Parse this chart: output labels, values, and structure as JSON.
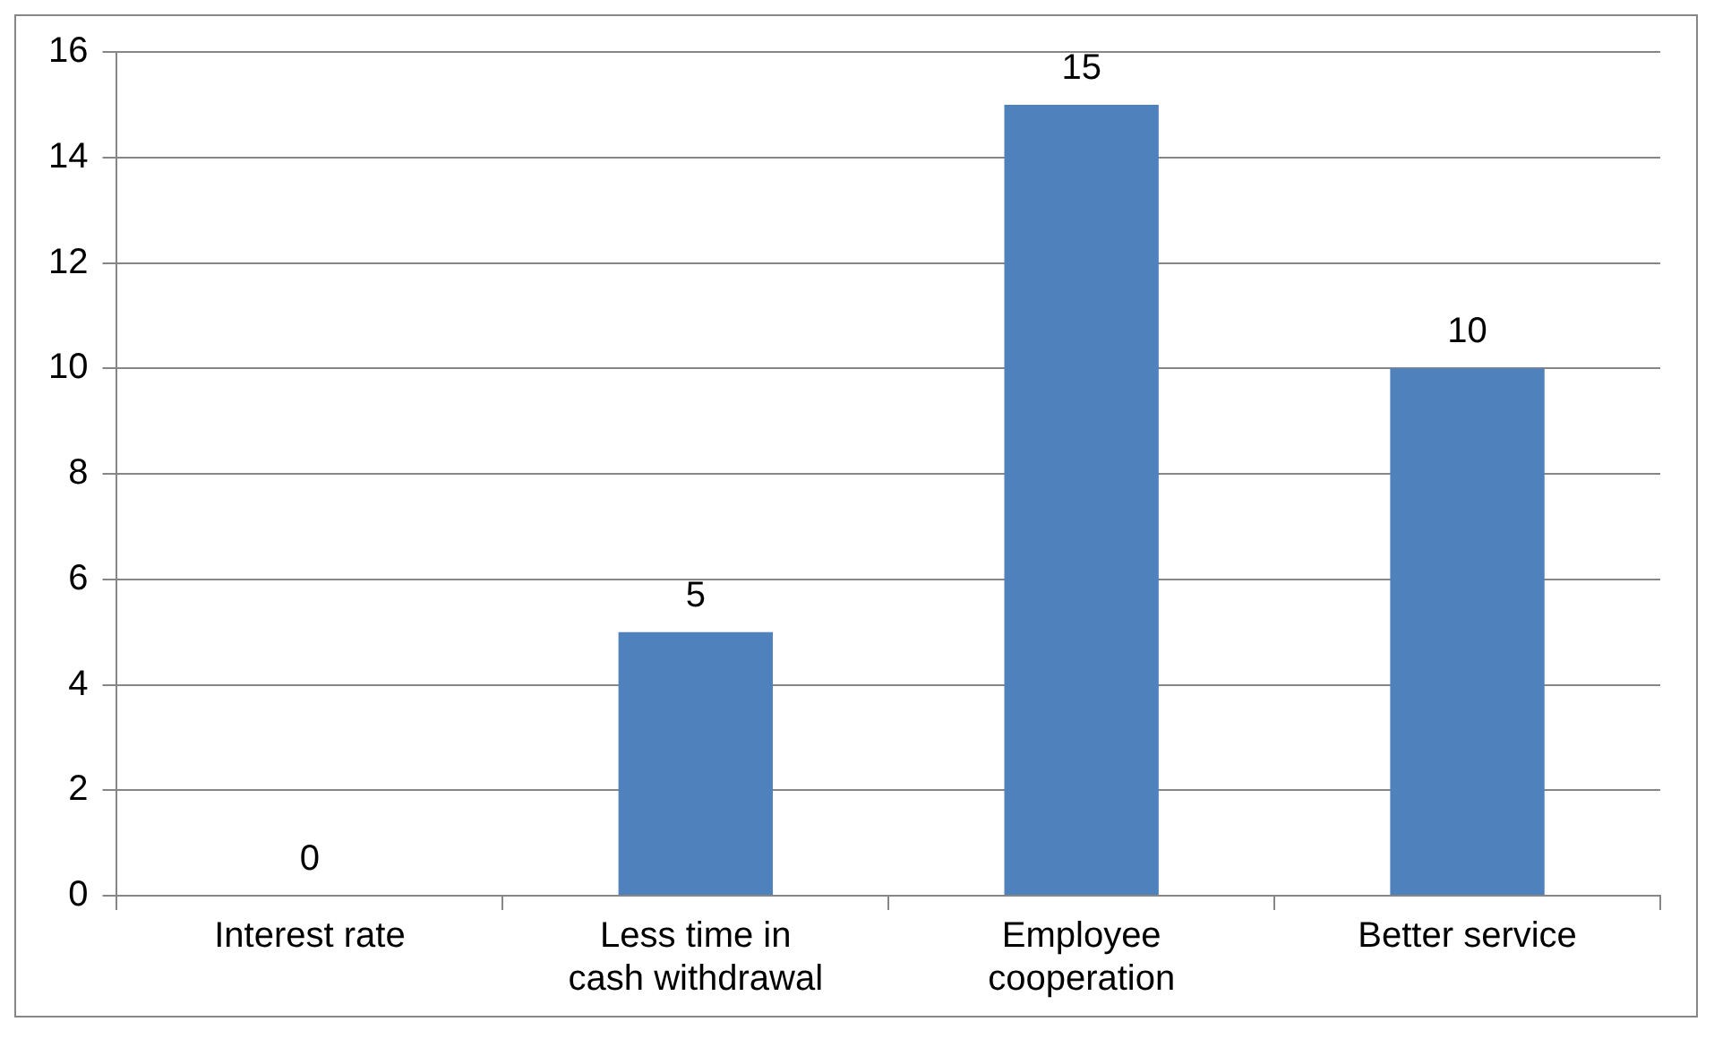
{
  "chart_data": {
    "type": "bar",
    "categories": [
      "Interest rate",
      "Less time in cash withdrawal",
      "Employee cooperation",
      "Better service"
    ],
    "values": [
      0,
      5,
      15,
      10
    ],
    "color": "#4f81bd",
    "ylim": [
      0,
      16
    ],
    "yticks": [
      0,
      2,
      4,
      6,
      8,
      10,
      12,
      14,
      16
    ],
    "grid": "y",
    "data_labels": true,
    "legend": false
  }
}
